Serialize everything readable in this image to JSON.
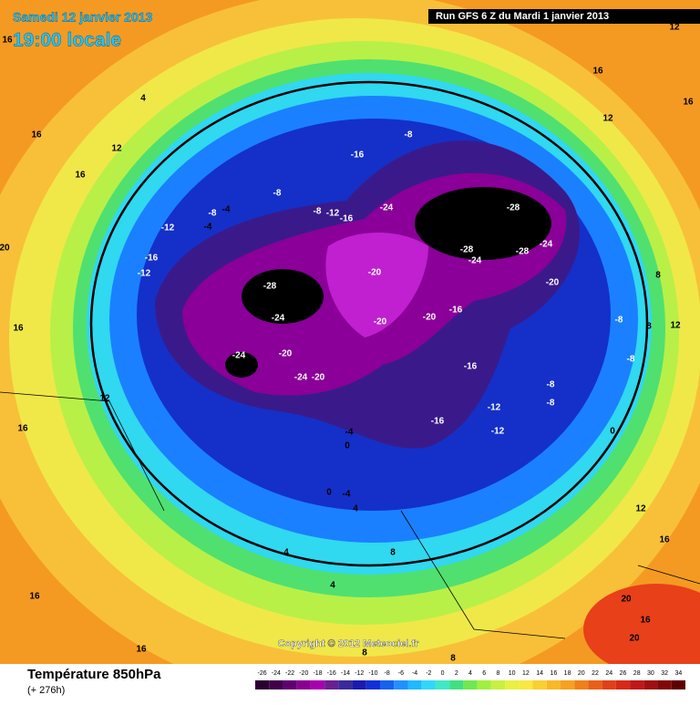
{
  "header": {
    "date": "Samedi 12 janvier 2013",
    "time": "19:00 locale",
    "run": "Run GFS 6 Z du Mardi 1 janvier 2013"
  },
  "copyright": "Copyright © 2012 Meteociel.fr",
  "footer": {
    "title": "Température 850hPa",
    "lead": "(+ 276h)"
  },
  "contour_labels": [
    16,
    4,
    16,
    12,
    16,
    20,
    16,
    12,
    16,
    4,
    4,
    16,
    16,
    8,
    8,
    16,
    12,
    12,
    16,
    -8,
    -16,
    -8,
    -4,
    -8,
    -4,
    -12,
    -8,
    -12,
    -16,
    -24,
    -28,
    -28,
    -24,
    -28,
    -24,
    -20,
    -16,
    -12,
    -20,
    -28,
    -24,
    -20,
    -20,
    -16,
    -24,
    -20,
    -24,
    -20,
    -16,
    -8,
    -8,
    -12,
    -16,
    -12,
    -4,
    0,
    0,
    -4,
    0,
    8,
    8,
    12,
    -8,
    -8,
    12,
    16,
    20,
    16,
    20,
    8,
    4
  ],
  "scale": {
    "values": [
      -26,
      -24,
      -22,
      -20,
      -18,
      -16,
      -14,
      -12,
      -10,
      -8,
      -6,
      -4,
      -2,
      0,
      2,
      4,
      6,
      8,
      10,
      12,
      14,
      16,
      18,
      20,
      22,
      24,
      26,
      28,
      30,
      32,
      34
    ],
    "colors": [
      "#2a0030",
      "#40004a",
      "#600070",
      "#8a0090",
      "#a800b0",
      "#6a2090",
      "#3a2a9a",
      "#1a1ab0",
      "#1030d8",
      "#1860f0",
      "#2090ff",
      "#20b8ff",
      "#30d8f8",
      "#40e8c8",
      "#40e080",
      "#70e850",
      "#a0f040",
      "#c8f040",
      "#e8f040",
      "#f8e840",
      "#f8d030",
      "#f8b828",
      "#f8a020",
      "#f08018",
      "#e86018",
      "#e04018",
      "#d82818",
      "#c01818",
      "#a01010",
      "#800808",
      "#600000"
    ]
  }
}
